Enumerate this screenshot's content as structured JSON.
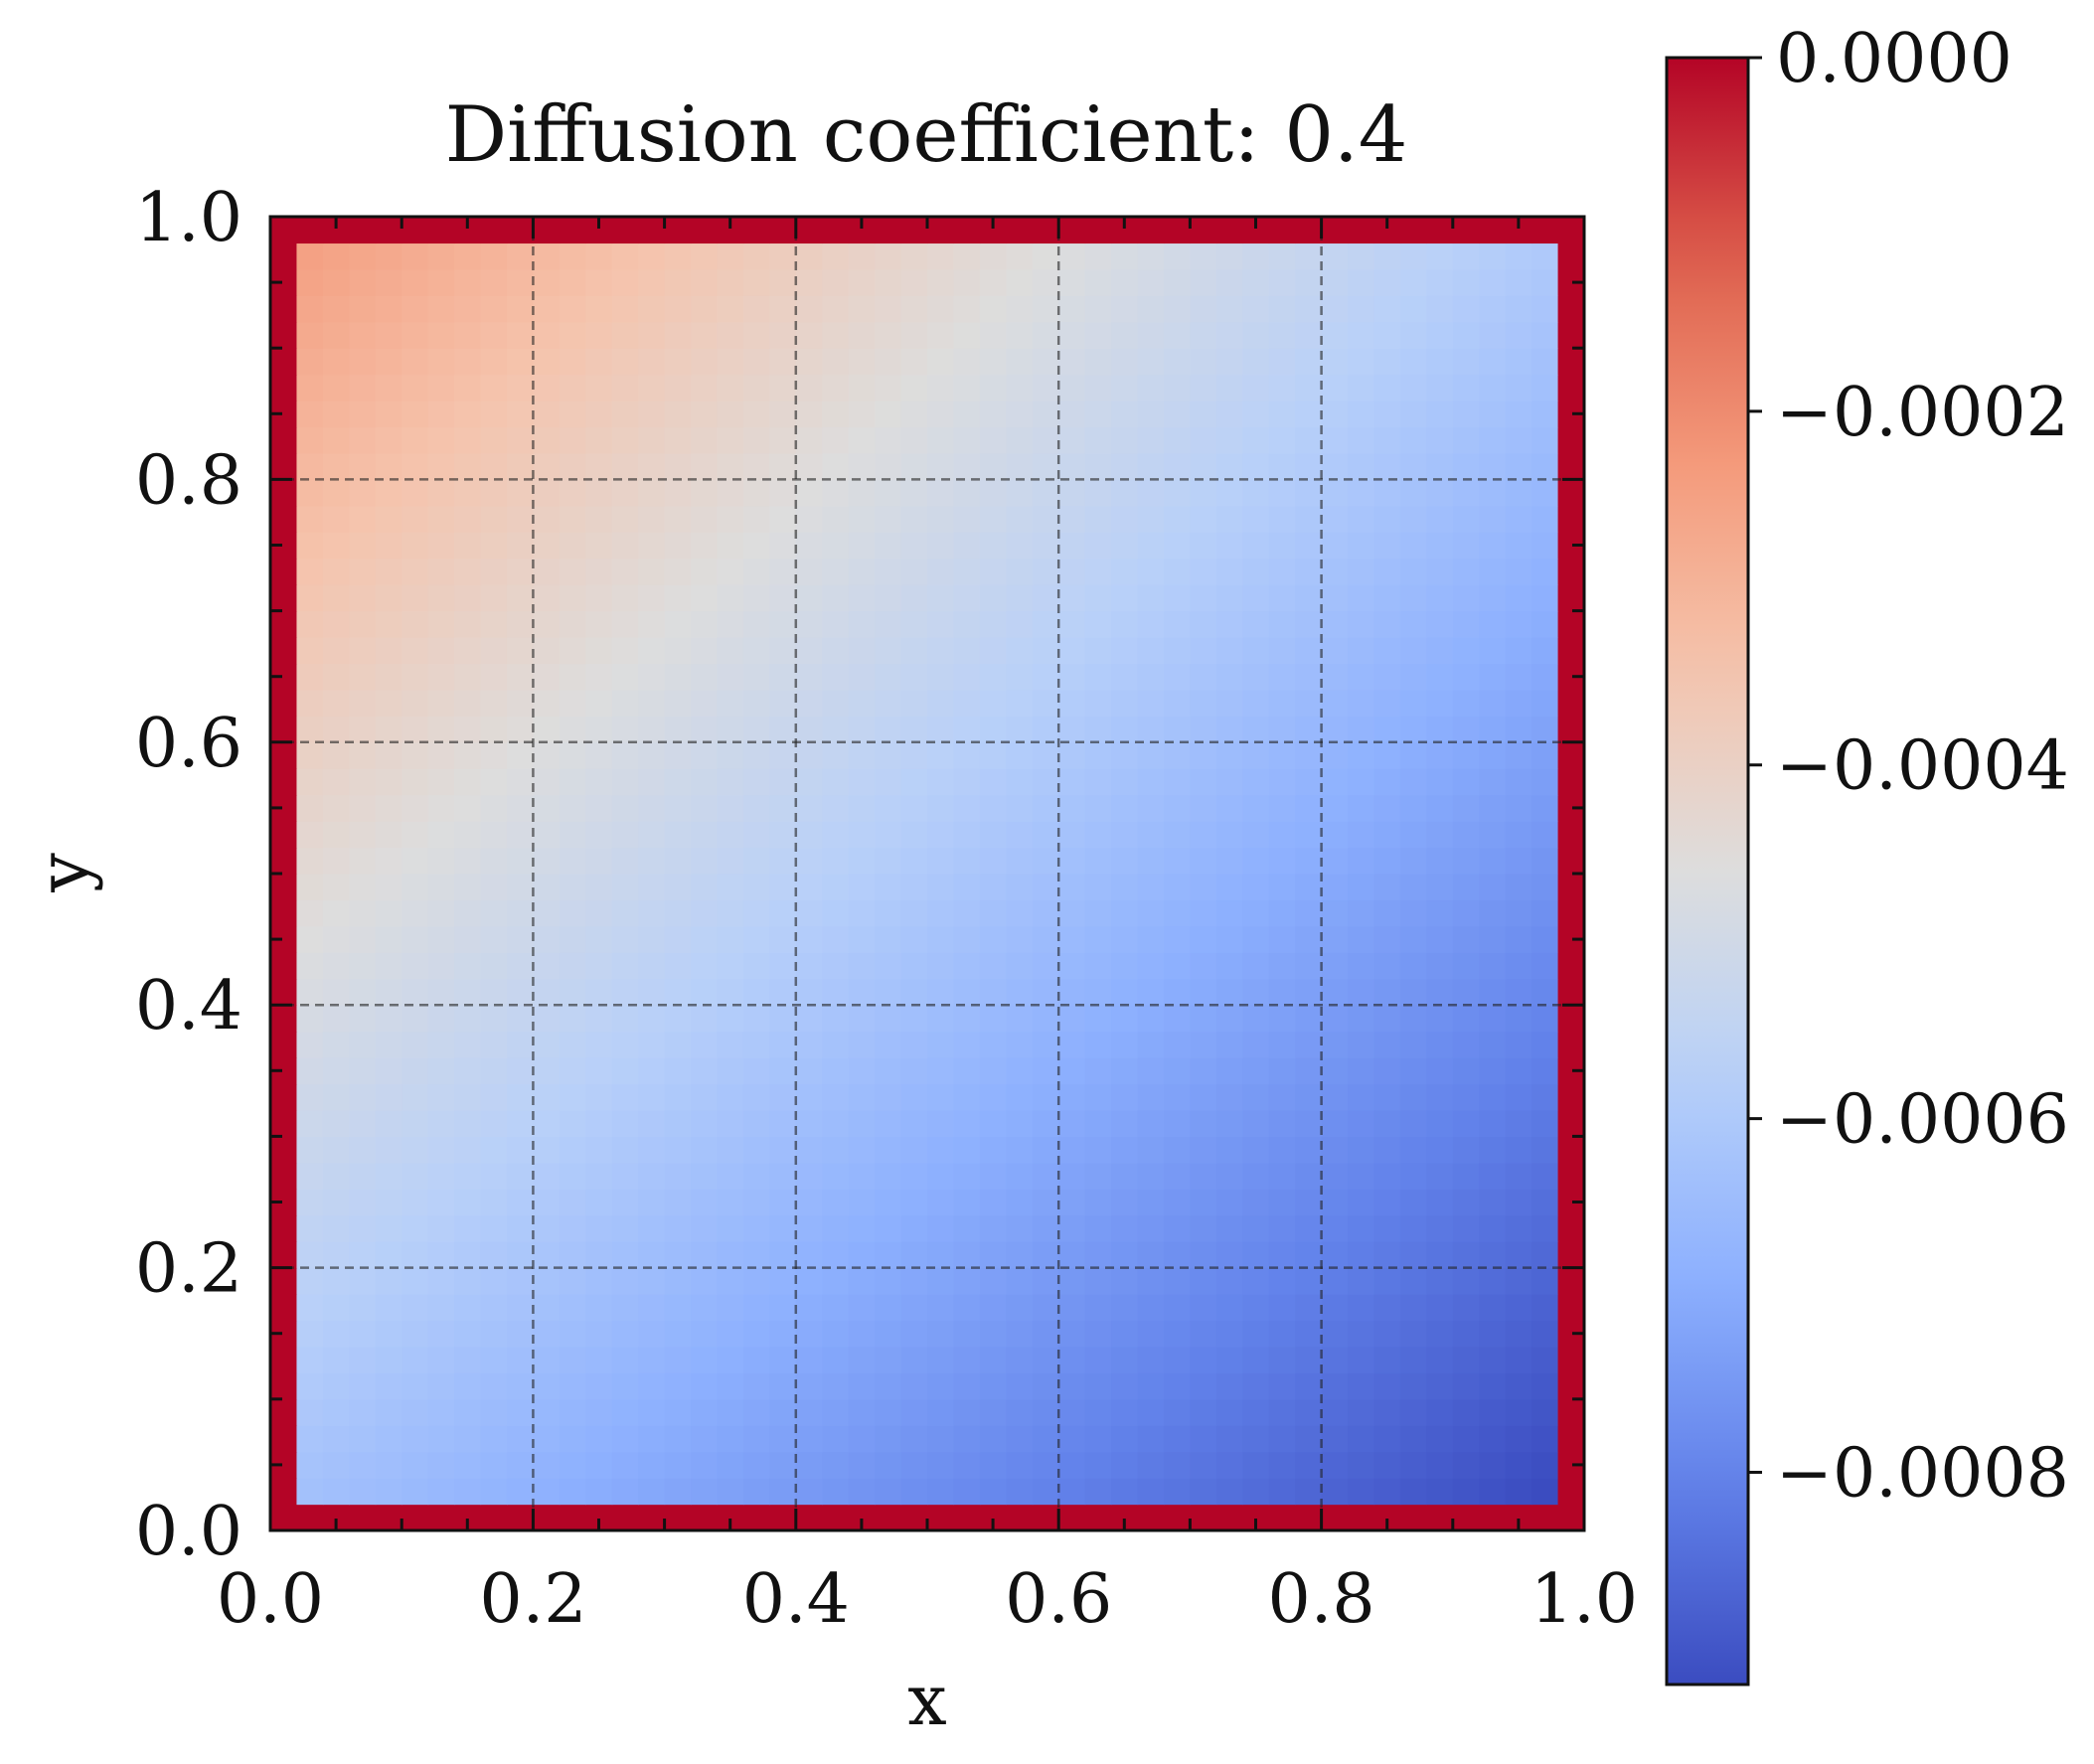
{
  "chart_data": {
    "type": "heatmap",
    "title": "Diffusion coefficient: 0.4",
    "xlabel": "x",
    "ylabel": "y",
    "xlim": [
      0.0,
      1.0
    ],
    "ylim": [
      0.0,
      1.0
    ],
    "x_ticks": [
      "0.0",
      "0.2",
      "0.4",
      "0.6",
      "0.8",
      "1.0"
    ],
    "y_ticks": [
      "0.0",
      "0.2",
      "0.4",
      "0.6",
      "0.8",
      "1.0"
    ],
    "grid": true,
    "colormap": "coolwarm",
    "colorbar": {
      "vmin": -0.00092,
      "vmax": 0.0,
      "ticks": [
        "0.0000",
        "−0.0002",
        "−0.0004",
        "−0.0006",
        "−0.0008"
      ],
      "tick_values": [
        0.0,
        -0.0002,
        -0.0004,
        -0.0006,
        -0.0008
      ]
    },
    "grid_size": 50,
    "field": {
      "boundary_value": 0.0,
      "corner_values": {
        "x0_y0": -0.00063,
        "x1_y0": -0.00092,
        "x0_y1": -0.00025,
        "x1_y1": -0.0006
      }
    }
  }
}
